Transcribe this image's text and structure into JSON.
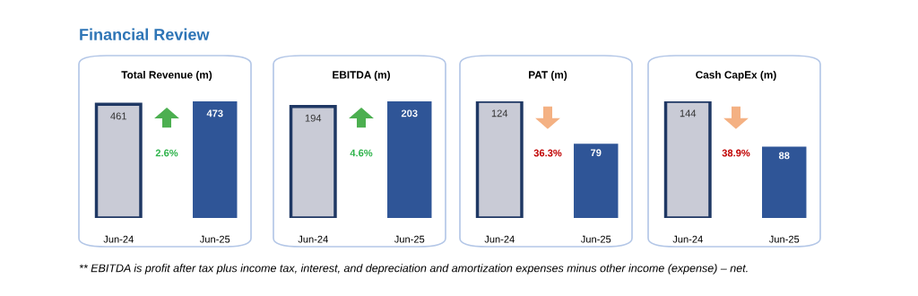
{
  "chart_data": [
    {
      "type": "other",
      "title": "Financial Review"
    },
    {
      "type": "bar",
      "title": "Total Revenue (m)",
      "categories": [
        "Jun-24",
        "Jun-25"
      ],
      "values": [
        461,
        473
      ],
      "colors": [
        "#c9cbd6",
        "#2f5597"
      ],
      "data_labels": true,
      "annotations": [
        "2.6%"
      ]
    },
    {
      "type": "bar",
      "title": "EBITDA (m)",
      "categories": [
        "Jun-24",
        "Jun-25"
      ],
      "values": [
        194,
        203
      ],
      "colors": [
        "#c9cbd6",
        "#2f5597"
      ],
      "data_labels": true,
      "annotations": [
        "4.6%"
      ]
    },
    {
      "type": "bar",
      "title": "PAT (m)",
      "categories": [
        "Jun-24",
        "Jun-25"
      ],
      "values": [
        124,
        79
      ],
      "colors": [
        "#c9cbd6",
        "#2f5597"
      ],
      "data_labels": true,
      "annotations": [
        "36.3%"
      ]
    },
    {
      "type": "bar",
      "title": "Cash CapEx (m)",
      "categories": [
        "Jun-24",
        "Jun-25"
      ],
      "values": [
        144,
        88
      ],
      "colors": [
        "#c9cbd6",
        "#2f5597"
      ],
      "data_labels": true,
      "annotations": [
        "38.9%"
      ]
    },
    {
      "type": "other",
      "annotations": [
        "** EBITDA is profit after tax plus income tax, interest, and depreciation and amortization expenses minus other income (expense) – net."
      ]
    }
  ]
}
